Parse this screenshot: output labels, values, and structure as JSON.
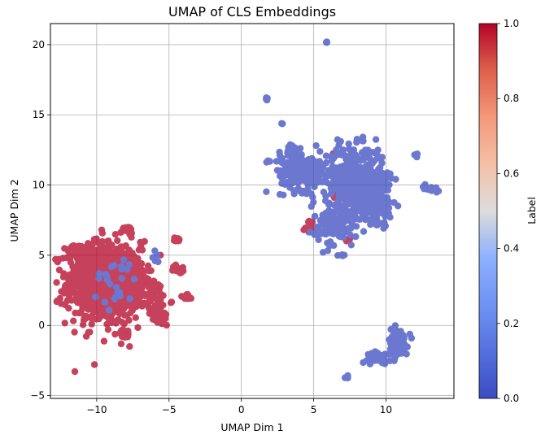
{
  "chart_data": {
    "type": "scatter",
    "title": "UMAP of CLS Embeddings",
    "xlabel": "UMAP Dim 1",
    "ylabel": "UMAP Dim 2",
    "xlim": [
      -13.2,
      14.7
    ],
    "ylim": [
      -5.2,
      21.5
    ],
    "x_ticks": [
      -10,
      -5,
      0,
      5,
      10
    ],
    "y_ticks": [
      -5,
      0,
      5,
      10,
      15,
      20
    ],
    "grid": true,
    "colormap": "coolwarm",
    "color_low": "#3b4cc0",
    "color_high": "#b40426",
    "colorbar": {
      "label": "Label",
      "range": [
        0.0,
        1.0
      ],
      "ticks": [
        "0.0",
        "0.2",
        "0.4",
        "0.6",
        "0.8",
        "1.0"
      ]
    },
    "series": [
      {
        "label_value": 1,
        "clusters": [
          {
            "cx": -9.5,
            "cy": 3.0,
            "sx": 1.3,
            "sy": 1.5,
            "n": 700
          },
          {
            "cx": -7.6,
            "cy": 3.2,
            "sx": 0.7,
            "sy": 1.0,
            "n": 140
          },
          {
            "cx": -10.6,
            "cy": 5.2,
            "sx": 0.6,
            "sy": 0.4,
            "n": 80
          },
          {
            "cx": -6.2,
            "cy": 1.8,
            "sx": 0.6,
            "sy": 0.8,
            "n": 60
          },
          {
            "cx": -7.8,
            "cy": 6.8,
            "sx": 0.15,
            "sy": 0.12,
            "n": 14
          },
          {
            "cx": -4.5,
            "cy": 6.1,
            "sx": 0.15,
            "sy": 0.1,
            "n": 12
          },
          {
            "cx": -4.3,
            "cy": 4.0,
            "sx": 0.2,
            "sy": 0.15,
            "n": 14
          },
          {
            "cx": -3.8,
            "cy": 2.0,
            "sx": 0.25,
            "sy": 0.15,
            "n": 16
          },
          {
            "cx": -5.5,
            "cy": 0.5,
            "sx": 0.3,
            "sy": 0.3,
            "n": 20
          },
          {
            "cx": -8.0,
            "cy": -0.6,
            "sx": 0.3,
            "sy": 0.15,
            "n": 18
          },
          {
            "cx": 4.7,
            "cy": 7.1,
            "sx": 0.3,
            "sy": 0.25,
            "n": 14
          },
          {
            "cx": 6.9,
            "cy": 9.0,
            "sx": 0.3,
            "sy": 0.15,
            "n": 10
          },
          {
            "cx": 7.5,
            "cy": 6.0,
            "sx": 0.15,
            "sy": 0.15,
            "n": 4
          },
          {
            "cx": 8.2,
            "cy": 9.5,
            "sx": 0.6,
            "sy": 0.6,
            "n": 8
          },
          {
            "cx": 6.5,
            "cy": 12.3,
            "sx": 0.1,
            "sy": 0.1,
            "n": 3
          }
        ]
      },
      {
        "label_value": 0,
        "clusters": [
          {
            "cx": -8.7,
            "cy": 3.0,
            "sx": 0.8,
            "sy": 1.0,
            "n": 25
          },
          {
            "cx": -6.0,
            "cy": 5.0,
            "sx": 0.3,
            "sy": 0.3,
            "n": 6
          },
          {
            "cx": 4.3,
            "cy": 11.0,
            "sx": 0.8,
            "sy": 0.7,
            "n": 160
          },
          {
            "cx": 7.8,
            "cy": 10.5,
            "sx": 1.0,
            "sy": 1.1,
            "n": 420
          },
          {
            "cx": 8.8,
            "cy": 9.3,
            "sx": 0.8,
            "sy": 0.9,
            "n": 160
          },
          {
            "cx": 6.6,
            "cy": 7.3,
            "sx": 0.8,
            "sy": 0.8,
            "n": 120
          },
          {
            "cx": 3.4,
            "cy": 12.2,
            "sx": 0.4,
            "sy": 0.4,
            "n": 20
          },
          {
            "cx": 10.8,
            "cy": -1.2,
            "sx": 0.35,
            "sy": 0.5,
            "n": 110
          },
          {
            "cx": 9.5,
            "cy": -2.3,
            "sx": 0.4,
            "sy": 0.2,
            "n": 25
          },
          {
            "cx": 13.1,
            "cy": 9.8,
            "sx": 0.35,
            "sy": 0.12,
            "n": 14
          },
          {
            "cx": 12.1,
            "cy": 12.1,
            "sx": 0.1,
            "sy": 0.1,
            "n": 6
          },
          {
            "cx": 1.8,
            "cy": 16.1,
            "sx": 0.05,
            "sy": 0.08,
            "n": 4
          },
          {
            "cx": 2.8,
            "cy": 14.4,
            "sx": 0.05,
            "sy": 0.06,
            "n": 3
          },
          {
            "cx": 5.9,
            "cy": 20.2,
            "sx": 0.04,
            "sy": 0.04,
            "n": 3
          },
          {
            "cx": 7.4,
            "cy": -3.7,
            "sx": 0.1,
            "sy": 0.08,
            "n": 4
          },
          {
            "cx": 1.8,
            "cy": 11.7,
            "sx": 0.1,
            "sy": 0.05,
            "n": 3
          },
          {
            "cx": 7.1,
            "cy": 5.0,
            "sx": 0.08,
            "sy": 0.08,
            "n": 3
          },
          {
            "cx": 10.0,
            "cy": 8.3,
            "sx": 0.3,
            "sy": 0.3,
            "n": 14
          },
          {
            "cx": 9.3,
            "cy": 7.4,
            "sx": 0.2,
            "sy": 0.2,
            "n": 8
          }
        ]
      }
    ]
  }
}
